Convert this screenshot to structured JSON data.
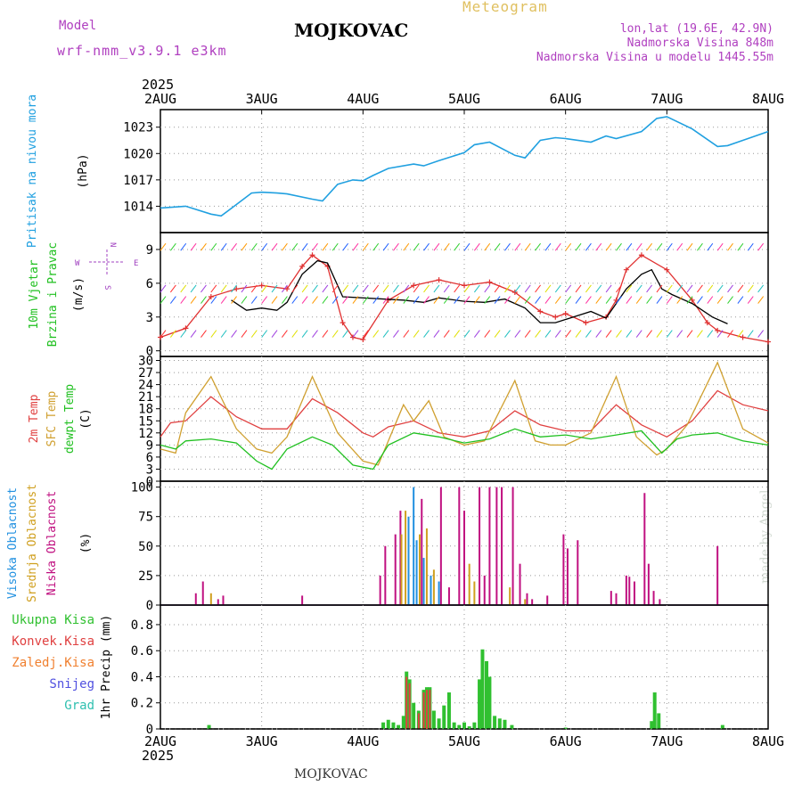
{
  "header": {
    "meteogram_label": "Meteogram",
    "station": "MOJKOVAC",
    "model_label": "Model",
    "model_name": "wrf-nmm_v3.9.1 e3km",
    "lonlat": "lon,lat (19.6E, 42.9N)",
    "elevation": "Nadmorska Visina 848m",
    "model_elevation": "Nadmorska Visina u modelu 1445.55m",
    "footer_station": "MOJKOVAC",
    "made_by": "made by Angel"
  },
  "colors": {
    "pressure": "#20a0e0",
    "wind_speed": "#e03030",
    "wind_gust": "#000000",
    "temp2m": "#e04040",
    "sfc_temp": "#d0a030",
    "dewpoint": "#20c020",
    "cloud_high": "#2090e0",
    "cloud_mid": "#d0a020",
    "cloud_low": "#c01080",
    "precip_total": "#30c030",
    "precip_conv": "#e04040"
  },
  "chart_data": {
    "type": "line",
    "x_axis": {
      "year": "2025",
      "day_labels": [
        "2AUG",
        "3AUG",
        "4AUG",
        "5AUG",
        "6AUG",
        "7AUG",
        "8AUG"
      ],
      "range_days": [
        0,
        6
      ]
    },
    "panels": [
      {
        "id": "pressure",
        "ylabel": "Pritisak na nivou mora",
        "unit": "(hPa)",
        "ylim": [
          1011,
          1025
        ],
        "yticks": [
          1014,
          1017,
          1020,
          1023
        ],
        "series": [
          {
            "name": "Pressure",
            "x": [
              0,
              0.25,
              0.5,
              0.6,
              0.75,
              0.9,
              1.0,
              1.15,
              1.25,
              1.5,
              1.6,
              1.75,
              1.9,
              2.0,
              2.1,
              2.25,
              2.5,
              2.6,
              2.75,
              3.0,
              3.1,
              3.25,
              3.5,
              3.6,
              3.75,
              3.9,
              4.0,
              4.25,
              4.4,
              4.5,
              4.75,
              4.9,
              5.0,
              5.25,
              5.5,
              5.6,
              5.75,
              6.0
            ],
            "values": [
              1013.8,
              1014.0,
              1013.1,
              1012.9,
              1014.2,
              1015.5,
              1015.6,
              1015.5,
              1015.4,
              1014.8,
              1014.6,
              1016.5,
              1017.0,
              1016.9,
              1017.5,
              1018.3,
              1018.8,
              1018.6,
              1019.2,
              1020.1,
              1021.0,
              1021.3,
              1019.8,
              1019.5,
              1021.5,
              1021.8,
              1021.7,
              1021.3,
              1022.0,
              1021.7,
              1022.5,
              1024.0,
              1024.2,
              1022.8,
              1020.8,
              1020.9,
              1021.5,
              1022.5
            ]
          }
        ]
      },
      {
        "id": "wind",
        "ylabel": "10m Vjetar Brzina i Pravac",
        "unit": "(m/s)",
        "compass": {
          "n": "N",
          "s": "S",
          "e": "E",
          "w": "W"
        },
        "ylim": [
          -0.5,
          10.5
        ],
        "yticks": [
          0,
          3,
          6,
          9
        ],
        "series": [
          {
            "name": "Wind speed",
            "x": [
              0,
              0.25,
              0.5,
              0.75,
              1.0,
              1.25,
              1.4,
              1.5,
              1.65,
              1.8,
              1.9,
              2.0,
              2.25,
              2.5,
              2.75,
              3.0,
              3.25,
              3.5,
              3.75,
              3.9,
              4.0,
              4.2,
              4.4,
              4.5,
              4.6,
              4.75,
              5.0,
              5.25,
              5.4,
              5.5,
              5.75,
              6.0
            ],
            "values": [
              1.2,
              2.0,
              4.8,
              5.5,
              5.8,
              5.5,
              7.5,
              8.5,
              7.5,
              2.5,
              1.2,
              1.0,
              4.5,
              5.8,
              6.3,
              5.8,
              6.1,
              5.2,
              3.5,
              3.0,
              3.3,
              2.5,
              3.0,
              4.5,
              7.2,
              8.5,
              7.2,
              4.5,
              2.5,
              1.8,
              1.2,
              0.8
            ]
          },
          {
            "name": "Wind gust",
            "x": [
              0.7,
              0.85,
              1.0,
              1.15,
              1.25,
              1.4,
              1.55,
              1.65,
              1.8,
              2.4,
              2.6,
              2.75,
              3.0,
              3.2,
              3.4,
              3.6,
              3.75,
              3.9,
              4.25,
              4.4,
              4.6,
              4.75,
              4.85,
              4.95,
              5.05,
              5.25,
              5.45,
              5.6
            ],
            "values": [
              4.5,
              3.6,
              3.8,
              3.6,
              4.3,
              6.8,
              8.0,
              7.8,
              4.8,
              4.5,
              4.3,
              4.7,
              4.4,
              4.3,
              4.6,
              3.8,
              2.5,
              2.5,
              3.5,
              2.9,
              5.5,
              6.8,
              7.2,
              5.5,
              5.0,
              4.2,
              3.0,
              2.4
            ]
          }
        ]
      },
      {
        "id": "temperature",
        "ylabel": "2m Temp SFC Temp dewpt Temp",
        "series_labels": [
          "2m Temp",
          "SFC Temp",
          "dewpt Temp"
        ],
        "unit": "(C)",
        "ylim": [
          0,
          31
        ],
        "yticks": [
          0,
          3,
          6,
          9,
          12,
          15,
          18,
          21,
          24,
          27,
          30
        ],
        "series": [
          {
            "name": "2m Temp",
            "x": [
              0,
              0.1,
              0.25,
              0.5,
              0.75,
              1.0,
              1.25,
              1.5,
              1.75,
              2.0,
              2.1,
              2.25,
              2.5,
              2.75,
              3.0,
              3.25,
              3.5,
              3.75,
              4.0,
              4.25,
              4.5,
              4.75,
              5.0,
              5.25,
              5.5,
              5.75,
              6.0
            ],
            "values": [
              11,
              14.5,
              15,
              21,
              16,
              13,
              13,
              20.5,
              17,
              12,
              11,
              13.5,
              15,
              12,
              11,
              12.5,
              17.5,
              14,
              12.5,
              12.5,
              19,
              14,
              11,
              15,
              22.5,
              19,
              17.5
            ]
          },
          {
            "name": "SFC Temp",
            "x": [
              0,
              0.15,
              0.25,
              0.5,
              0.75,
              0.95,
              1.1,
              1.25,
              1.5,
              1.75,
              2.0,
              2.15,
              2.4,
              2.5,
              2.65,
              2.8,
              3.0,
              3.2,
              3.5,
              3.7,
              3.85,
              4.0,
              4.25,
              4.5,
              4.7,
              4.9,
              5.0,
              5.2,
              5.5,
              5.75,
              6.0
            ],
            "values": [
              8,
              7,
              17,
              26,
              13,
              8,
              7,
              11,
              26,
              12,
              5,
              4,
              19,
              15,
              20,
              11,
              9,
              10,
              25,
              10,
              9,
              9,
              12,
              26,
              11,
              6.5,
              8,
              14,
              29.5,
              13,
              9.5
            ]
          },
          {
            "name": "dewpt Temp",
            "x": [
              0,
              0.15,
              0.25,
              0.5,
              0.75,
              0.95,
              1.1,
              1.25,
              1.5,
              1.7,
              1.9,
              2.1,
              2.25,
              2.5,
              2.75,
              3.0,
              3.25,
              3.5,
              3.75,
              4.0,
              4.25,
              4.5,
              4.75,
              4.95,
              5.1,
              5.25,
              5.5,
              5.75,
              6.0
            ],
            "values": [
              9,
              8,
              10,
              10.5,
              9.5,
              5,
              3,
              8,
              11,
              9,
              4,
              3,
              9,
              12,
              11,
              9.5,
              10.5,
              13,
              11,
              11.5,
              10.5,
              11.5,
              12.5,
              7,
              10.5,
              11.5,
              12,
              10,
              9
            ]
          }
        ]
      },
      {
        "id": "clouds",
        "ylabel": "Visoka Oblacnost Srednja Oblacnost Niska Oblacnost",
        "series_labels": [
          "Visoka Oblacnost",
          "Srednja Oblacnost",
          "Niska Oblacnost"
        ],
        "unit": "(%)",
        "ylim": [
          0,
          105
        ],
        "yticks": [
          0,
          25,
          50,
          75,
          100
        ],
        "series": [
          {
            "name": "Visoka Oblacnost",
            "x": [
              2.45,
              2.5,
              2.53,
              2.6,
              2.67,
              2.75
            ],
            "values": [
              75,
              100,
              55,
              40,
              25,
              20
            ]
          },
          {
            "name": "Srednja Oblacnost",
            "x": [
              0.5,
              2.38,
              2.42,
              2.56,
              2.63,
              2.7,
              3.05,
              3.1,
              3.45,
              3.6
            ],
            "values": [
              10,
              60,
              80,
              60,
              65,
              30,
              35,
              20,
              15,
              5
            ]
          },
          {
            "name": "Niska Oblacnost",
            "x": [
              0.35,
              0.42,
              0.57,
              0.62,
              1.4,
              2.17,
              2.22,
              2.32,
              2.37,
              2.58,
              2.77,
              2.85,
              2.95,
              3.0,
              3.15,
              3.2,
              3.25,
              3.32,
              3.37,
              3.48,
              3.55,
              3.62,
              3.67,
              3.82,
              3.98,
              4.02,
              4.12,
              4.45,
              4.5,
              4.6,
              4.63,
              4.68,
              4.78,
              4.82,
              4.87,
              4.93,
              5.5
            ],
            "values": [
              10,
              20,
              5,
              8,
              8,
              25,
              50,
              60,
              80,
              90,
              100,
              15,
              100,
              80,
              100,
              25,
              100,
              100,
              100,
              100,
              35,
              10,
              5,
              8,
              60,
              48,
              55,
              12,
              10,
              25,
              24,
              20,
              95,
              35,
              12,
              5,
              50
            ]
          }
        ]
      },
      {
        "id": "precipitation",
        "ylabel": "1hr Precip",
        "unit": "(mm)",
        "legend": [
          "Ukupna Kisa",
          "Konvek.Kisa",
          "Zaledj.Kisa",
          "Snijeg",
          "Grad"
        ],
        "ylim": [
          0,
          0.95
        ],
        "yticks": [
          0,
          0.2,
          0.4,
          0.6,
          0.8
        ],
        "series": [
          {
            "name": "Ukupna Kisa",
            "x": [
              0.48,
              2.2,
              2.25,
              2.3,
              2.35,
              2.4,
              2.43,
              2.46,
              2.5,
              2.55,
              2.6,
              2.63,
              2.66,
              2.7,
              2.75,
              2.8,
              2.85,
              2.9,
              2.95,
              3.0,
              3.05,
              3.1,
              3.15,
              3.18,
              3.22,
              3.25,
              3.3,
              3.35,
              3.4,
              3.47,
              4.0,
              4.85,
              4.88,
              4.92,
              5.55
            ],
            "values": [
              0.03,
              0.05,
              0.07,
              0.05,
              0.03,
              0.1,
              0.44,
              0.38,
              0.2,
              0.14,
              0.3,
              0.32,
              0.32,
              0.14,
              0.08,
              0.18,
              0.28,
              0.05,
              0.03,
              0.05,
              0.02,
              0.05,
              0.38,
              0.61,
              0.52,
              0.4,
              0.1,
              0.08,
              0.07,
              0.03,
              0.01,
              0.06,
              0.28,
              0.12,
              0.03
            ]
          },
          {
            "name": "Konvek.Kisa",
            "x": [
              2.43,
              2.46,
              2.55,
              2.6,
              2.63,
              2.66
            ],
            "values": [
              0.4,
              0.35,
              0.12,
              0.28,
              0.3,
              0.3
            ]
          }
        ]
      }
    ]
  }
}
